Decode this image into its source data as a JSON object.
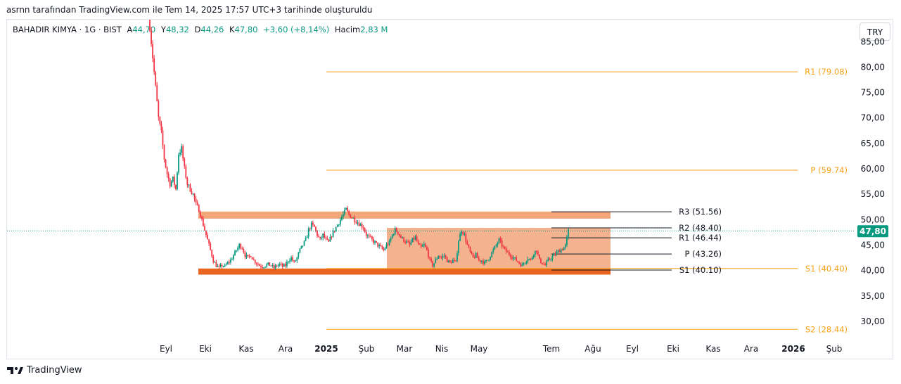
{
  "attribution": "asrnn tarafından TradingView.com ile Tem 14, 2025 17:57 UTC+3 tarihinde oluşturuldu",
  "legend": {
    "symbol": "BAHADIR KIMYA · 1G · BIST",
    "open_label": "A",
    "open_value": "44,70",
    "high_label": "Y",
    "high_value": "48,32",
    "low_label": "D",
    "low_value": "44,26",
    "close_label": "K",
    "close_value": "47,80",
    "change": "+3,60 (+8,14%)",
    "volume_label": "Hacim",
    "volume_value": "2,83 M"
  },
  "currency_button": "TRY",
  "footer": {
    "brand": "TradingView",
    "logo_icon": "tradingview-logo-icon"
  },
  "colors": {
    "up": "#089981",
    "down": "#f23645",
    "pivot_orange": "#f7a21b",
    "zone_fill": "#f2a67a",
    "zone_dark": "#e8641f"
  },
  "chart_data": {
    "type": "candlestick",
    "y_axis": {
      "ticks": [
        "30,00",
        "35,00",
        "40,00",
        "45,00",
        "50,00",
        "55,00",
        "60,00",
        "65,00",
        "70,00",
        "75,00",
        "80,00",
        "85,00"
      ],
      "range": [
        25.8,
        89
      ],
      "position": "right"
    },
    "x_axis": {
      "labels": [
        "Eyl",
        "Eki",
        "Kas",
        "Ara",
        "2025",
        "Şub",
        "Mar",
        "Nis",
        "May",
        "Tem",
        "Ağu",
        "Eyl",
        "Eki",
        "Kas",
        "Ara",
        "2026",
        "Şub"
      ],
      "bold": [
        "2025",
        "2026"
      ]
    },
    "last_price": {
      "value": 47.8,
      "label": "47,80"
    },
    "pivots_long": [
      {
        "label": "R1 (79.08)",
        "value": 79.08
      },
      {
        "label": "P (59.74)",
        "value": 59.74
      },
      {
        "label": "S1 (40.40)",
        "value": 40.4
      },
      {
        "label": "S2 (28.44)",
        "value": 28.44
      }
    ],
    "pivots_short": [
      {
        "label": "R3 (51.56)",
        "value": 51.56
      },
      {
        "label": "R2 (48.40)",
        "value": 48.4
      },
      {
        "label": "R1 (46.44)",
        "value": 46.44
      },
      {
        "label": "P (43.26)",
        "value": 43.26
      },
      {
        "label": "S1 (40.10)",
        "value": 40.1
      }
    ],
    "zones": [
      {
        "name": "resistance-band",
        "from": 50.2,
        "to": 51.6
      },
      {
        "name": "range-box",
        "from": 40.2,
        "to": 48.4
      },
      {
        "name": "support-band",
        "from": 39.2,
        "to": 40.4
      }
    ],
    "price_path": [
      [
        0,
        88
      ],
      [
        2,
        82
      ],
      [
        4,
        76
      ],
      [
        6,
        70
      ],
      [
        8,
        67
      ],
      [
        10,
        62
      ],
      [
        12,
        59
      ],
      [
        14,
        57
      ],
      [
        16,
        58
      ],
      [
        18,
        56
      ],
      [
        20,
        63
      ],
      [
        22,
        64
      ],
      [
        24,
        60
      ],
      [
        26,
        57
      ],
      [
        28,
        56
      ],
      [
        30,
        55
      ],
      [
        32,
        53
      ],
      [
        34,
        52
      ],
      [
        36,
        50
      ],
      [
        38,
        48
      ],
      [
        40,
        46
      ],
      [
        42,
        44
      ],
      [
        44,
        42
      ],
      [
        46,
        41
      ],
      [
        48,
        40.5
      ],
      [
        50,
        41
      ],
      [
        52,
        40.8
      ],
      [
        54,
        41.5
      ],
      [
        56,
        42
      ],
      [
        58,
        43
      ],
      [
        60,
        44
      ],
      [
        62,
        45
      ],
      [
        64,
        44.5
      ],
      [
        66,
        43
      ],
      [
        68,
        42.5
      ],
      [
        70,
        43
      ],
      [
        72,
        42
      ],
      [
        74,
        41.5
      ],
      [
        76,
        41
      ],
      [
        78,
        40.8
      ],
      [
        80,
        41
      ],
      [
        82,
        41.2
      ],
      [
        84,
        41
      ],
      [
        86,
        40.5
      ],
      [
        88,
        41
      ],
      [
        90,
        41.2
      ],
      [
        92,
        40.8
      ],
      [
        94,
        41
      ],
      [
        96,
        42
      ],
      [
        98,
        42.5
      ],
      [
        100,
        41.5
      ],
      [
        102,
        42.5
      ],
      [
        104,
        44
      ],
      [
        106,
        45
      ],
      [
        108,
        46
      ],
      [
        110,
        48
      ],
      [
        112,
        49
      ],
      [
        114,
        48.5
      ],
      [
        116,
        47
      ],
      [
        118,
        46
      ],
      [
        120,
        47
      ],
      [
        122,
        46
      ],
      [
        124,
        45.5
      ],
      [
        126,
        47
      ],
      [
        128,
        48
      ],
      [
        130,
        49
      ],
      [
        132,
        50
      ],
      [
        134,
        51
      ],
      [
        136,
        52
      ],
      [
        138,
        51
      ],
      [
        140,
        50.5
      ],
      [
        142,
        50
      ],
      [
        144,
        49.5
      ],
      [
        146,
        49
      ],
      [
        148,
        48.5
      ],
      [
        150,
        47
      ],
      [
        152,
        46.5
      ],
      [
        154,
        46
      ],
      [
        156,
        45.5
      ],
      [
        158,
        45
      ],
      [
        160,
        44.5
      ],
      [
        162,
        44
      ],
      [
        164,
        45
      ],
      [
        166,
        45.5
      ],
      [
        168,
        47
      ],
      [
        170,
        48
      ],
      [
        172,
        47.5
      ],
      [
        174,
        46.5
      ],
      [
        176,
        46
      ],
      [
        178,
        45.5
      ],
      [
        180,
        45
      ],
      [
        182,
        46
      ],
      [
        184,
        46.5
      ],
      [
        186,
        45
      ],
      [
        188,
        44.5
      ],
      [
        190,
        45
      ],
      [
        192,
        44
      ],
      [
        194,
        42
      ],
      [
        196,
        41
      ],
      [
        198,
        42
      ],
      [
        200,
        43
      ],
      [
        202,
        42.5
      ],
      [
        204,
        43
      ],
      [
        206,
        42
      ],
      [
        208,
        41.5
      ],
      [
        210,
        42
      ],
      [
        212,
        41.5
      ],
      [
        214,
        46
      ],
      [
        216,
        48
      ],
      [
        218,
        47
      ],
      [
        220,
        45
      ],
      [
        222,
        43.5
      ],
      [
        224,
        42.5
      ],
      [
        226,
        43
      ],
      [
        228,
        42
      ],
      [
        230,
        42
      ],
      [
        232,
        41.5
      ],
      [
        234,
        42
      ],
      [
        236,
        43
      ],
      [
        238,
        44
      ],
      [
        240,
        45
      ],
      [
        242,
        46
      ],
      [
        244,
        45
      ],
      [
        246,
        44
      ],
      [
        248,
        43.5
      ],
      [
        250,
        43
      ],
      [
        252,
        42.5
      ],
      [
        254,
        42
      ],
      [
        256,
        41.5
      ],
      [
        258,
        41
      ],
      [
        260,
        41.8
      ],
      [
        262,
        42.5
      ],
      [
        264,
        42
      ],
      [
        266,
        43.5
      ],
      [
        268,
        44
      ],
      [
        270,
        42
      ],
      [
        272,
        41.5
      ],
      [
        274,
        41
      ],
      [
        276,
        42
      ],
      [
        278,
        42.5
      ],
      [
        280,
        43
      ],
      [
        282,
        43.5
      ],
      [
        284,
        44
      ],
      [
        286,
        44.3
      ],
      [
        288,
        44.8
      ],
      [
        290,
        47.8
      ]
    ]
  }
}
